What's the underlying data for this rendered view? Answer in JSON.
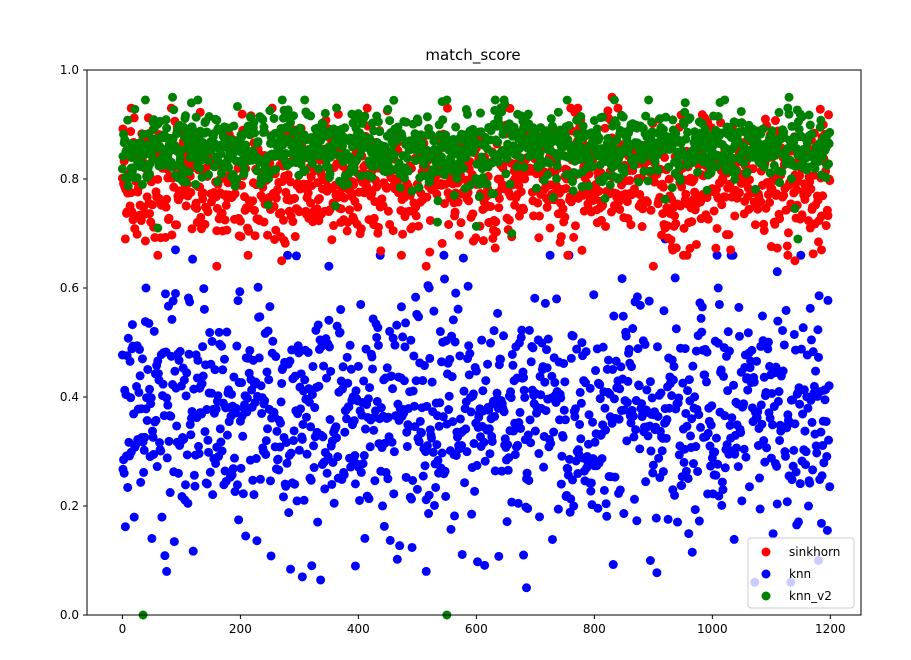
{
  "chart_data": {
    "type": "scatter",
    "title": "match_score",
    "xlabel": "",
    "ylabel": "",
    "xlim": [
      -60,
      1252
    ],
    "ylim": [
      0,
      1
    ],
    "x_ticks": [
      0,
      200,
      400,
      600,
      800,
      1000,
      1200
    ],
    "y_ticks": [
      0.0,
      0.2,
      0.4,
      0.6,
      0.8,
      1.0
    ],
    "x_tick_labels": [
      "0",
      "200",
      "400",
      "600",
      "800",
      "1000",
      "1200"
    ],
    "y_tick_labels": [
      "0.0",
      "0.2",
      "0.4",
      "0.6",
      "0.8",
      "1.0"
    ],
    "grid": false,
    "legend_position": "lower-right",
    "n_points_per_series": 1200,
    "series": [
      {
        "name": "sinkhorn",
        "color": "#ff0000",
        "distribution": "dense band, mostly 0.70-0.90, centered near 0.80",
        "sample_points": [
          [
            15,
            0.93
          ],
          [
            60,
            0.66
          ],
          [
            160,
            0.64
          ],
          [
            270,
            0.65
          ],
          [
            515,
            0.64
          ],
          [
            830,
            0.95
          ],
          [
            900,
            0.64
          ],
          [
            1140,
            0.65
          ],
          [
            1185,
            0.67
          ],
          [
            5,
            0.69
          ],
          [
            100,
            0.77
          ],
          [
            300,
            0.74
          ],
          [
            450,
            0.82
          ],
          [
            600,
            0.79
          ],
          [
            750,
            0.73
          ],
          [
            980,
            0.76
          ],
          [
            1100,
            0.78
          ]
        ]
      },
      {
        "name": "knn",
        "color": "#0000ff",
        "distribution": "wide spread, mostly 0.15-0.60, centered near 0.38",
        "sample_points": [
          [
            40,
            0.6
          ],
          [
            75,
            0.08
          ],
          [
            90,
            0.67
          ],
          [
            305,
            0.07
          ],
          [
            350,
            0.64
          ],
          [
            395,
            0.09
          ],
          [
            515,
            0.08
          ],
          [
            520,
            0.6
          ],
          [
            545,
            0.66
          ],
          [
            680,
            0.11
          ],
          [
            685,
            0.05
          ],
          [
            895,
            0.1
          ],
          [
            920,
            0.69
          ],
          [
            1010,
            0.6
          ],
          [
            1110,
            0.63
          ],
          [
            1180,
            0.1
          ]
        ]
      },
      {
        "name": "knn_v2",
        "color": "#008000",
        "distribution": "tight band, mostly 0.78-0.93, centered near 0.86",
        "sample_points": [
          [
            35,
            0.0
          ],
          [
            550,
            0.0
          ],
          [
            85,
            0.95
          ],
          [
            1130,
            0.95
          ],
          [
            660,
            0.7
          ],
          [
            1145,
            0.69
          ],
          [
            60,
            0.71
          ],
          [
            300,
            0.87
          ],
          [
            500,
            0.88
          ],
          [
            800,
            0.86
          ],
          [
            1000,
            0.85
          ]
        ]
      }
    ]
  }
}
